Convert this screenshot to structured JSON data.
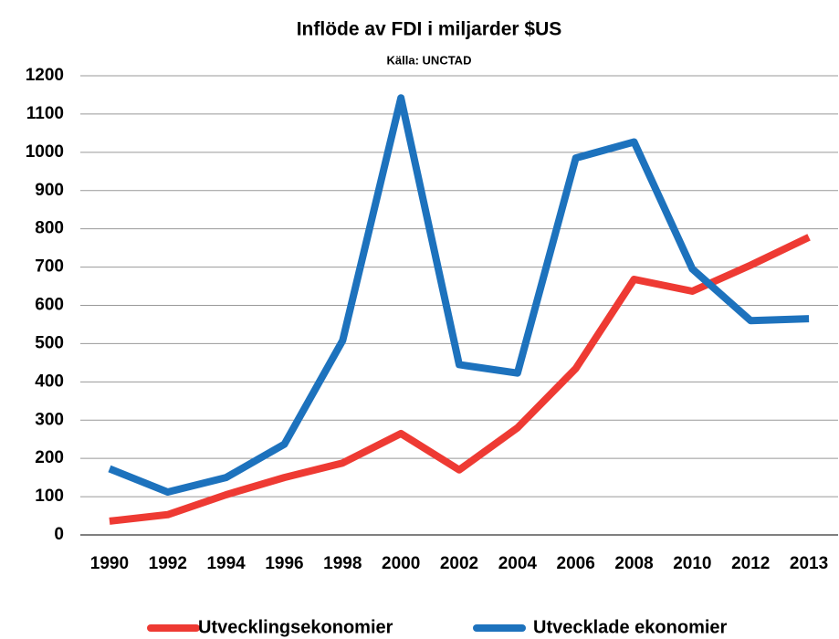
{
  "chart_data": {
    "type": "line",
    "title": "Inflöde av FDI i miljarder $US",
    "subtitle": "Källa: UNCTAD",
    "categories": [
      "1990",
      "1992",
      "1994",
      "1996",
      "1998",
      "2000",
      "2002",
      "2004",
      "2006",
      "2008",
      "2010",
      "2012",
      "2013"
    ],
    "series": [
      {
        "name": "Utvecklingsekonomier",
        "color": "#ee3a33",
        "values": [
          36,
          53,
          105,
          150,
          188,
          265,
          170,
          280,
          435,
          668,
          637,
          705,
          778
        ]
      },
      {
        "name": "Utvecklade ekonomier",
        "color": "#1d72bd",
        "values": [
          173,
          112,
          150,
          237,
          508,
          1142,
          445,
          423,
          985,
          1027,
          695,
          560,
          565
        ]
      }
    ],
    "ylim": [
      0,
      1200
    ],
    "yticks": [
      0,
      100,
      200,
      300,
      400,
      500,
      600,
      700,
      800,
      900,
      1000,
      1100,
      1200
    ],
    "grid": true,
    "legend": "bottom"
  }
}
